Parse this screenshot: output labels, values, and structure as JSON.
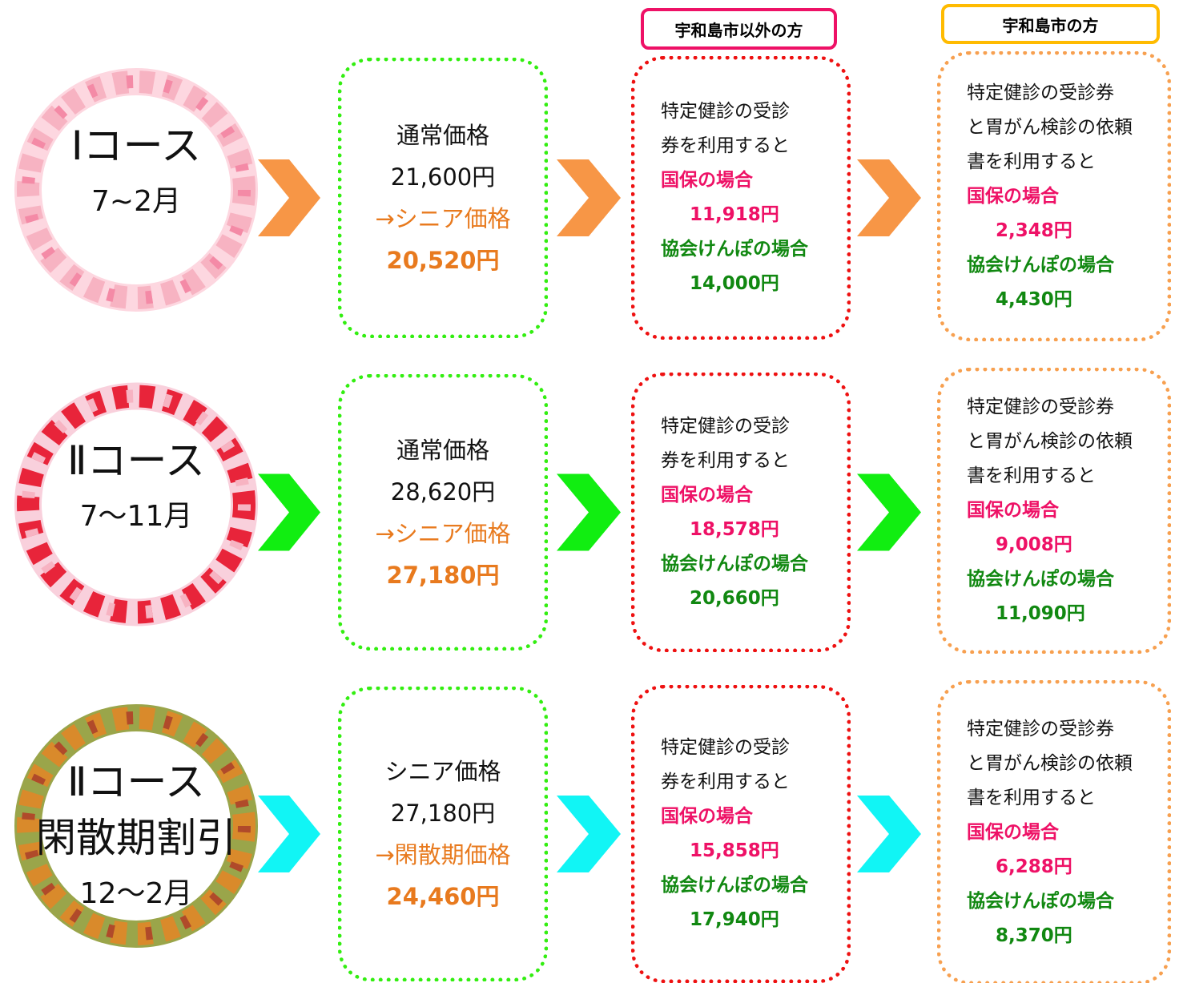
{
  "header": {
    "outside": "宇和島市以外の方",
    "city": "宇和島市の方"
  },
  "rows": [
    {
      "course": [
        "Ⅰコース"
      ],
      "period": "7~2月",
      "price": [
        "通常価格",
        "21,600円",
        "→シニア価格",
        "20,520円"
      ],
      "outside": [
        "特定健診の受診",
        "券を利用すると",
        "国保の場合",
        "11,918円",
        "協会けんぽの場合",
        "14,000円"
      ],
      "city": [
        "特定健診の受診券",
        "と胃がん検診の依頼",
        "書を利用すると",
        "国保の場合",
        "2,348円",
        "協会けんぽの場合",
        "4,430円"
      ]
    },
    {
      "course": [
        "Ⅱコース"
      ],
      "period": "7～11月",
      "price": [
        "通常価格",
        "28,620円",
        "→シニア価格",
        "27,180円"
      ],
      "outside": [
        "特定健診の受診",
        "券を利用すると",
        "国保の場合",
        "18,578円",
        "協会けんぽの場合",
        "20,660円"
      ],
      "city": [
        "特定健診の受診券",
        "と胃がん検診の依頼",
        "書を利用すると",
        "国保の場合",
        "9,008円",
        "協会けんぽの場合",
        "11,090円"
      ]
    },
    {
      "course": [
        "Ⅱコース",
        "閑散期割引"
      ],
      "period": "12～2月",
      "price": [
        "シニア価格",
        "27,180円",
        "→閑散期価格",
        "24,460円"
      ],
      "outside": [
        "特定健診の受診",
        "券を利用すると",
        "国保の場合",
        "15,858円",
        "協会けんぽの場合",
        "17,940円"
      ],
      "city": [
        "特定健診の受診券",
        "と胃がん検診の依頼",
        "書を利用すると",
        "国保の場合",
        "6,288円",
        "協会けんぽの場合",
        "8,370円"
      ]
    }
  ]
}
